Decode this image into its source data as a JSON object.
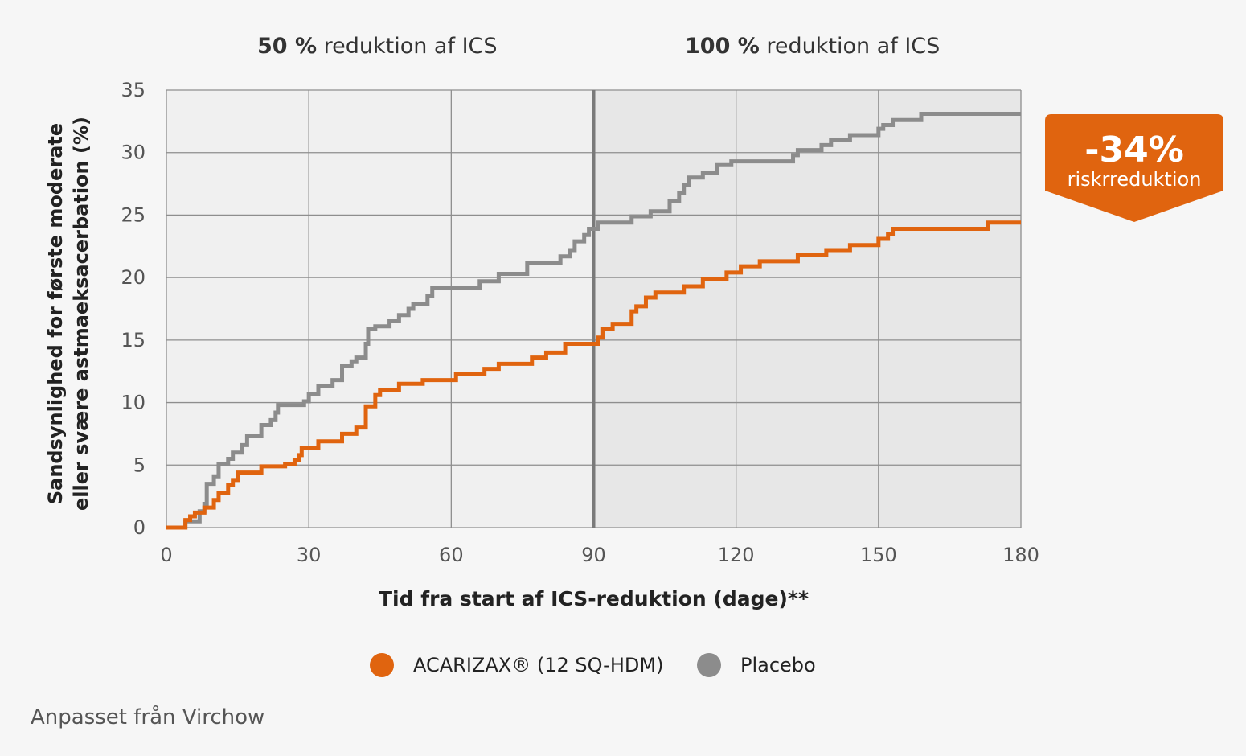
{
  "header": {
    "phase1_bold": "50 %",
    "phase1_text": "reduktion af ICS",
    "phase2_bold": "100 %",
    "phase2_text": "reduktion af ICS"
  },
  "badge": {
    "value": "-34%",
    "text": "riskrreduktion",
    "color": "#e0640f"
  },
  "legend": {
    "items": [
      {
        "label": "ACARIZAX® (12 SQ-HDM)",
        "color": "#e0640f"
      },
      {
        "label": "Placebo",
        "color": "#8c8c8c"
      }
    ]
  },
  "source": "Anpasset från Virchow",
  "chart_data": {
    "type": "line",
    "step": true,
    "xlabel": "Tid fra start af ICS-reduktion (dage)**",
    "ylabel_line1": "Sandsynlighed for første moderate",
    "ylabel_line2": "eller svære astmaeksacerbation (%)",
    "xlim": [
      0,
      180
    ],
    "ylim": [
      0,
      35
    ],
    "xticks": [
      0,
      30,
      60,
      90,
      120,
      150,
      180
    ],
    "yticks": [
      0,
      5,
      10,
      15,
      20,
      25,
      30,
      35
    ],
    "grid": true,
    "legend_position": "bottom",
    "phase_divider_x": 90,
    "series": [
      {
        "name": "ACARIZAX® (12 SQ-HDM)",
        "color": "#e0640f",
        "points": [
          [
            0,
            0
          ],
          [
            4,
            0.6
          ],
          [
            5,
            0.9
          ],
          [
            6,
            1.2
          ],
          [
            8,
            1.6
          ],
          [
            10,
            2.2
          ],
          [
            11,
            2.8
          ],
          [
            13,
            3.4
          ],
          [
            14,
            3.8
          ],
          [
            15,
            4.4
          ],
          [
            19,
            4.4
          ],
          [
            20,
            4.9
          ],
          [
            24,
            4.9
          ],
          [
            25,
            5.1
          ],
          [
            27,
            5.4
          ],
          [
            28,
            5.8
          ],
          [
            28.5,
            6.4
          ],
          [
            32,
            6.9
          ],
          [
            37,
            7.5
          ],
          [
            40,
            8.0
          ],
          [
            42,
            9.7
          ],
          [
            44,
            10.6
          ],
          [
            45,
            11.0
          ],
          [
            49,
            11.5
          ],
          [
            54,
            11.8
          ],
          [
            61,
            12.3
          ],
          [
            67,
            12.7
          ],
          [
            70,
            13.1
          ],
          [
            77,
            13.6
          ],
          [
            80,
            14.0
          ],
          [
            84,
            14.7
          ],
          [
            91,
            15.2
          ],
          [
            92,
            15.9
          ],
          [
            94,
            16.3
          ],
          [
            98,
            17.3
          ],
          [
            99,
            17.7
          ],
          [
            101,
            18.4
          ],
          [
            103,
            18.8
          ],
          [
            109,
            19.3
          ],
          [
            113,
            19.9
          ],
          [
            118,
            20.4
          ],
          [
            121,
            20.9
          ],
          [
            125,
            21.3
          ],
          [
            133,
            21.8
          ],
          [
            139,
            22.2
          ],
          [
            144,
            22.6
          ],
          [
            150,
            23.1
          ],
          [
            152,
            23.5
          ],
          [
            153,
            23.9
          ],
          [
            173,
            24.4
          ],
          [
            180,
            24.4
          ]
        ]
      },
      {
        "name": "Placebo",
        "color": "#8c8c8c",
        "points": [
          [
            0,
            0
          ],
          [
            4,
            0.5
          ],
          [
            7,
            1.3
          ],
          [
            8,
            1.9
          ],
          [
            8.5,
            3.5
          ],
          [
            10,
            4.1
          ],
          [
            11,
            5.1
          ],
          [
            13,
            5.5
          ],
          [
            14,
            6.0
          ],
          [
            16,
            6.6
          ],
          [
            17,
            7.3
          ],
          [
            20,
            8.2
          ],
          [
            22,
            8.6
          ],
          [
            23,
            9.2
          ],
          [
            23.5,
            9.8
          ],
          [
            29,
            10.1
          ],
          [
            30,
            10.7
          ],
          [
            32,
            11.3
          ],
          [
            35,
            11.8
          ],
          [
            37,
            12.9
          ],
          [
            39,
            13.3
          ],
          [
            40,
            13.6
          ],
          [
            42,
            14.7
          ],
          [
            42.5,
            15.9
          ],
          [
            44,
            16.1
          ],
          [
            47,
            16.5
          ],
          [
            49,
            17.0
          ],
          [
            51,
            17.5
          ],
          [
            52,
            17.9
          ],
          [
            55,
            18.5
          ],
          [
            56,
            19.2
          ],
          [
            66,
            19.7
          ],
          [
            70,
            20.3
          ],
          [
            76,
            21.2
          ],
          [
            83,
            21.7
          ],
          [
            85,
            22.2
          ],
          [
            86,
            22.9
          ],
          [
            88,
            23.4
          ],
          [
            89,
            23.9
          ],
          [
            91,
            24.4
          ],
          [
            98,
            24.9
          ],
          [
            102,
            25.3
          ],
          [
            106,
            26.1
          ],
          [
            108,
            26.8
          ],
          [
            109,
            27.4
          ],
          [
            110,
            28.0
          ],
          [
            113,
            28.4
          ],
          [
            116,
            29.0
          ],
          [
            119,
            29.3
          ],
          [
            132,
            29.8
          ],
          [
            133,
            30.2
          ],
          [
            138,
            30.6
          ],
          [
            140,
            31.0
          ],
          [
            144,
            31.4
          ],
          [
            150,
            31.9
          ],
          [
            151,
            32.2
          ],
          [
            153,
            32.6
          ],
          [
            159,
            33.1
          ],
          [
            180,
            33.1
          ]
        ]
      }
    ]
  }
}
